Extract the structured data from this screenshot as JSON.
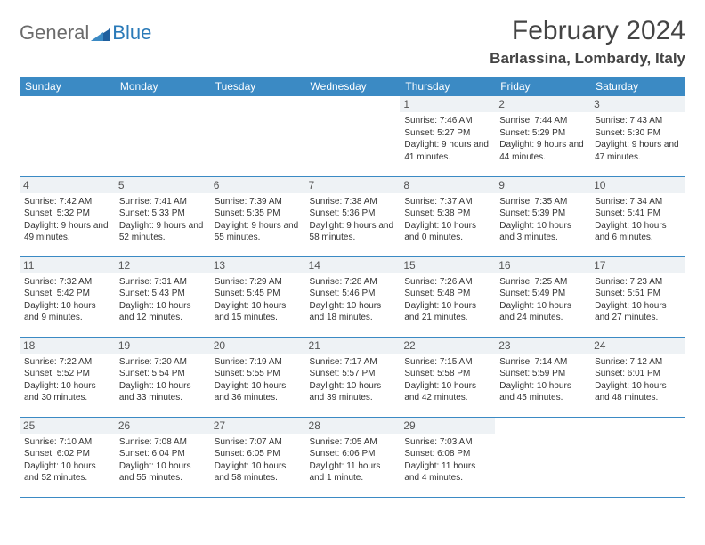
{
  "logo": {
    "part1": "General",
    "part2": "Blue"
  },
  "title": "February 2024",
  "location": "Barlassina, Lombardy, Italy",
  "colors": {
    "header_bg": "#3b8ac4",
    "header_fg": "#ffffff",
    "daynum_bg": "#eef2f5",
    "border": "#3b8ac4",
    "logo_grey": "#6b6b6b",
    "logo_blue": "#2a7ab8"
  },
  "weekdays": [
    "Sunday",
    "Monday",
    "Tuesday",
    "Wednesday",
    "Thursday",
    "Friday",
    "Saturday"
  ],
  "weeks": [
    [
      {
        "n": "",
        "sr": "",
        "ss": "",
        "dl": ""
      },
      {
        "n": "",
        "sr": "",
        "ss": "",
        "dl": ""
      },
      {
        "n": "",
        "sr": "",
        "ss": "",
        "dl": ""
      },
      {
        "n": "",
        "sr": "",
        "ss": "",
        "dl": ""
      },
      {
        "n": "1",
        "sr": "Sunrise: 7:46 AM",
        "ss": "Sunset: 5:27 PM",
        "dl": "Daylight: 9 hours and 41 minutes."
      },
      {
        "n": "2",
        "sr": "Sunrise: 7:44 AM",
        "ss": "Sunset: 5:29 PM",
        "dl": "Daylight: 9 hours and 44 minutes."
      },
      {
        "n": "3",
        "sr": "Sunrise: 7:43 AM",
        "ss": "Sunset: 5:30 PM",
        "dl": "Daylight: 9 hours and 47 minutes."
      }
    ],
    [
      {
        "n": "4",
        "sr": "Sunrise: 7:42 AM",
        "ss": "Sunset: 5:32 PM",
        "dl": "Daylight: 9 hours and 49 minutes."
      },
      {
        "n": "5",
        "sr": "Sunrise: 7:41 AM",
        "ss": "Sunset: 5:33 PM",
        "dl": "Daylight: 9 hours and 52 minutes."
      },
      {
        "n": "6",
        "sr": "Sunrise: 7:39 AM",
        "ss": "Sunset: 5:35 PM",
        "dl": "Daylight: 9 hours and 55 minutes."
      },
      {
        "n": "7",
        "sr": "Sunrise: 7:38 AM",
        "ss": "Sunset: 5:36 PM",
        "dl": "Daylight: 9 hours and 58 minutes."
      },
      {
        "n": "8",
        "sr": "Sunrise: 7:37 AM",
        "ss": "Sunset: 5:38 PM",
        "dl": "Daylight: 10 hours and 0 minutes."
      },
      {
        "n": "9",
        "sr": "Sunrise: 7:35 AM",
        "ss": "Sunset: 5:39 PM",
        "dl": "Daylight: 10 hours and 3 minutes."
      },
      {
        "n": "10",
        "sr": "Sunrise: 7:34 AM",
        "ss": "Sunset: 5:41 PM",
        "dl": "Daylight: 10 hours and 6 minutes."
      }
    ],
    [
      {
        "n": "11",
        "sr": "Sunrise: 7:32 AM",
        "ss": "Sunset: 5:42 PM",
        "dl": "Daylight: 10 hours and 9 minutes."
      },
      {
        "n": "12",
        "sr": "Sunrise: 7:31 AM",
        "ss": "Sunset: 5:43 PM",
        "dl": "Daylight: 10 hours and 12 minutes."
      },
      {
        "n": "13",
        "sr": "Sunrise: 7:29 AM",
        "ss": "Sunset: 5:45 PM",
        "dl": "Daylight: 10 hours and 15 minutes."
      },
      {
        "n": "14",
        "sr": "Sunrise: 7:28 AM",
        "ss": "Sunset: 5:46 PM",
        "dl": "Daylight: 10 hours and 18 minutes."
      },
      {
        "n": "15",
        "sr": "Sunrise: 7:26 AM",
        "ss": "Sunset: 5:48 PM",
        "dl": "Daylight: 10 hours and 21 minutes."
      },
      {
        "n": "16",
        "sr": "Sunrise: 7:25 AM",
        "ss": "Sunset: 5:49 PM",
        "dl": "Daylight: 10 hours and 24 minutes."
      },
      {
        "n": "17",
        "sr": "Sunrise: 7:23 AM",
        "ss": "Sunset: 5:51 PM",
        "dl": "Daylight: 10 hours and 27 minutes."
      }
    ],
    [
      {
        "n": "18",
        "sr": "Sunrise: 7:22 AM",
        "ss": "Sunset: 5:52 PM",
        "dl": "Daylight: 10 hours and 30 minutes."
      },
      {
        "n": "19",
        "sr": "Sunrise: 7:20 AM",
        "ss": "Sunset: 5:54 PM",
        "dl": "Daylight: 10 hours and 33 minutes."
      },
      {
        "n": "20",
        "sr": "Sunrise: 7:19 AM",
        "ss": "Sunset: 5:55 PM",
        "dl": "Daylight: 10 hours and 36 minutes."
      },
      {
        "n": "21",
        "sr": "Sunrise: 7:17 AM",
        "ss": "Sunset: 5:57 PM",
        "dl": "Daylight: 10 hours and 39 minutes."
      },
      {
        "n": "22",
        "sr": "Sunrise: 7:15 AM",
        "ss": "Sunset: 5:58 PM",
        "dl": "Daylight: 10 hours and 42 minutes."
      },
      {
        "n": "23",
        "sr": "Sunrise: 7:14 AM",
        "ss": "Sunset: 5:59 PM",
        "dl": "Daylight: 10 hours and 45 minutes."
      },
      {
        "n": "24",
        "sr": "Sunrise: 7:12 AM",
        "ss": "Sunset: 6:01 PM",
        "dl": "Daylight: 10 hours and 48 minutes."
      }
    ],
    [
      {
        "n": "25",
        "sr": "Sunrise: 7:10 AM",
        "ss": "Sunset: 6:02 PM",
        "dl": "Daylight: 10 hours and 52 minutes."
      },
      {
        "n": "26",
        "sr": "Sunrise: 7:08 AM",
        "ss": "Sunset: 6:04 PM",
        "dl": "Daylight: 10 hours and 55 minutes."
      },
      {
        "n": "27",
        "sr": "Sunrise: 7:07 AM",
        "ss": "Sunset: 6:05 PM",
        "dl": "Daylight: 10 hours and 58 minutes."
      },
      {
        "n": "28",
        "sr": "Sunrise: 7:05 AM",
        "ss": "Sunset: 6:06 PM",
        "dl": "Daylight: 11 hours and 1 minute."
      },
      {
        "n": "29",
        "sr": "Sunrise: 7:03 AM",
        "ss": "Sunset: 6:08 PM",
        "dl": "Daylight: 11 hours and 4 minutes."
      },
      {
        "n": "",
        "sr": "",
        "ss": "",
        "dl": ""
      },
      {
        "n": "",
        "sr": "",
        "ss": "",
        "dl": ""
      }
    ]
  ]
}
